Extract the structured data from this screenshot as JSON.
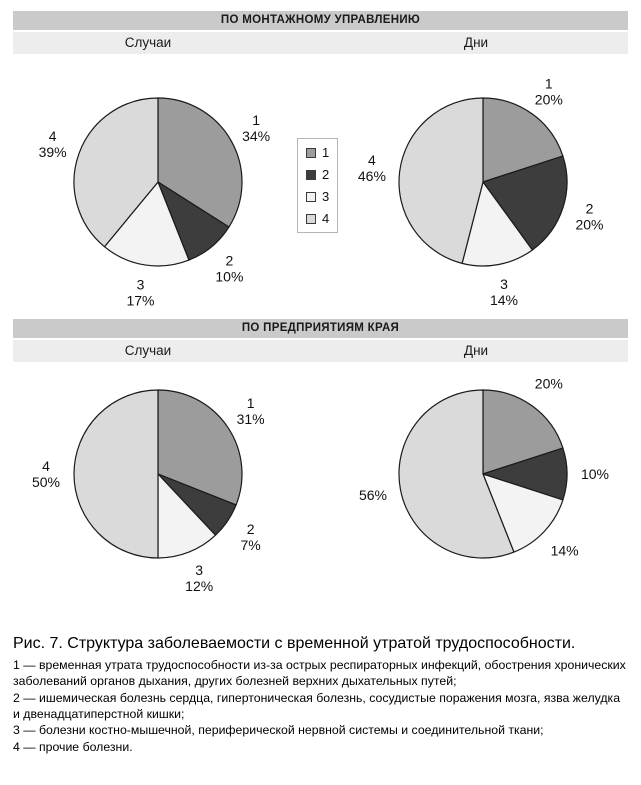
{
  "colors": {
    "slices": [
      "#9c9c9c",
      "#3d3d3d",
      "#f3f3f3",
      "#dadada"
    ],
    "stroke": "#1a1a1a",
    "header_bg": "#cacaca",
    "subheader_bg": "#ededed"
  },
  "sections": [
    {
      "title": "ПО МОНТАЖНОМУ УПРАВЛЕНИЮ",
      "columns": [
        "Случаи",
        "Дни"
      ]
    },
    {
      "title": "ПО ПРЕДПРИЯТИЯМ КРАЯ",
      "columns": [
        "Случаи",
        "Дни"
      ]
    }
  ],
  "legend": {
    "items": [
      "1",
      "2",
      "3",
      "4"
    ]
  },
  "caption": {
    "title": "Рис. 7. Структура заболеваемости с временной утратой трудоспособности.",
    "items": [
      "1 — временная утрата трудоспособности из-за острых респираторных инфекций, обострения хронических заболеваний органов дыхания, других болезней верхних дыхательных путей;",
      "2 — ишемическая болезнь сердца, гипертоническая болезнь, сосудистые поражения мозга, язва желудка и двенадцатиперстной кишки;",
      "3 — болезни костно-мышечной, периферической нервной системы и соединительной ткани;",
      "4 — прочие болезни."
    ]
  },
  "chart_data": [
    {
      "type": "pie",
      "section": "ПО МОНТАЖНОМУ УПРАВЛЕНИЮ",
      "measure": "Случаи",
      "categories": [
        "1",
        "2",
        "3",
        "4"
      ],
      "values": [
        34,
        10,
        17,
        39
      ],
      "unit": "%",
      "start_angle": 0,
      "direction": "clockwise",
      "labels_show_category": true
    },
    {
      "type": "pie",
      "section": "ПО МОНТАЖНОМУ УПРАВЛЕНИЮ",
      "measure": "Дни",
      "categories": [
        "1",
        "2",
        "3",
        "4"
      ],
      "values": [
        20,
        20,
        14,
        46
      ],
      "unit": "%",
      "start_angle": 0,
      "direction": "clockwise",
      "labels_show_category": true
    },
    {
      "type": "pie",
      "section": "ПО ПРЕДПРИЯТИЯМ КРАЯ",
      "measure": "Случаи",
      "categories": [
        "1",
        "2",
        "3",
        "4"
      ],
      "values": [
        31,
        7,
        12,
        50
      ],
      "unit": "%",
      "start_angle": 0,
      "direction": "clockwise",
      "labels_show_category": true
    },
    {
      "type": "pie",
      "section": "ПО ПРЕДПРИЯТИЯМ КРАЯ",
      "measure": "Дни",
      "categories": [
        "1",
        "2",
        "3",
        "4"
      ],
      "values": [
        20,
        10,
        14,
        56
      ],
      "unit": "%",
      "start_angle": 0,
      "direction": "clockwise",
      "labels_show_category": false
    }
  ]
}
